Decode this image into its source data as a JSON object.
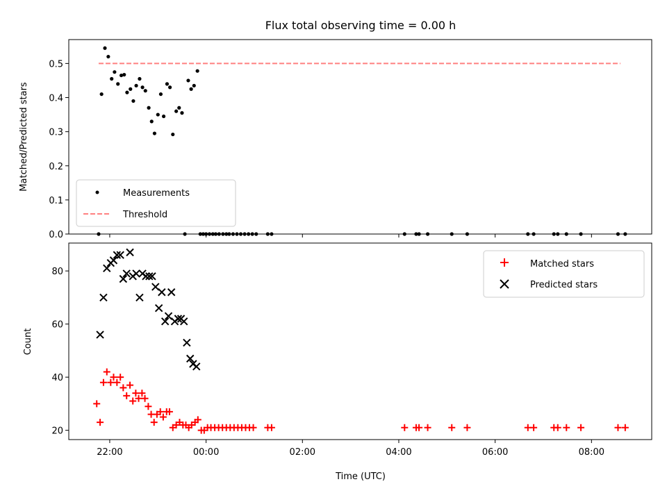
{
  "figure": {
    "title": "Flux total observing time = 0.00 h",
    "x_tick_labels": [
      "22:00",
      "00:00",
      "02:00",
      "04:00",
      "06:00",
      "08:00"
    ],
    "x_ticks_hours": [
      -2,
      0,
      2,
      4,
      6,
      8
    ],
    "xlabel": "Time (UTC)"
  },
  "chart_data": [
    {
      "type": "scatter",
      "ylabel": "Matched/Predicted stars",
      "xlim_hours": [
        -2.85,
        9.25
      ],
      "ylim": [
        0,
        0.57
      ],
      "y_ticks": [
        0.0,
        0.1,
        0.2,
        0.3,
        0.4,
        0.5
      ],
      "y_tick_labels": [
        "0.0",
        "0.1",
        "0.2",
        "0.3",
        "0.4",
        "0.5"
      ],
      "legend": {
        "placement": "lower-left",
        "entries": [
          "Measurements",
          "Threshold"
        ]
      },
      "series": [
        {
          "name": "Measurements",
          "marker": "dot",
          "color": "#000000",
          "x_hours": [
            -2.23,
            -2.17,
            -2.1,
            -2.03,
            -1.96,
            -1.9,
            -1.83,
            -1.76,
            -1.7,
            -1.64,
            -1.57,
            -1.51,
            -1.45,
            -1.38,
            -1.32,
            -1.26,
            -1.19,
            -1.13,
            -1.07,
            -1.0,
            -0.94,
            -0.88,
            -0.81,
            -0.75,
            -0.69,
            -0.62,
            -0.56,
            -0.5,
            -0.44,
            -0.37,
            -0.31,
            -0.25,
            -0.18,
            -0.12,
            -0.06,
            0.0,
            0.07,
            0.14,
            0.2,
            0.27,
            0.35,
            0.42,
            0.48,
            0.56,
            0.64,
            0.72,
            0.8,
            0.88,
            0.96,
            1.04,
            1.28,
            1.36,
            4.12,
            4.36,
            4.42,
            4.6,
            5.1,
            5.42,
            6.68,
            6.8,
            7.22,
            7.3,
            7.48,
            7.78,
            8.55,
            8.7
          ],
          "y_values": [
            0.0,
            0.41,
            0.545,
            0.52,
            0.455,
            0.475,
            0.44,
            0.465,
            0.467,
            0.415,
            0.425,
            0.39,
            0.435,
            0.455,
            0.43,
            0.42,
            0.37,
            0.33,
            0.295,
            0.35,
            0.41,
            0.345,
            0.44,
            0.43,
            0.292,
            0.36,
            0.37,
            0.355,
            0.0,
            0.45,
            0.425,
            0.435,
            0.478,
            0.0,
            0.0,
            0.0,
            0.0,
            0.0,
            0.0,
            0.0,
            0.0,
            0.0,
            0.0,
            0.0,
            0.0,
            0.0,
            0.0,
            0.0,
            0.0,
            0.0,
            0.0,
            0.0,
            0.0,
            0.0,
            0.0,
            0.0,
            0.0,
            0.0,
            0.0,
            0.0,
            0.0,
            0.0,
            0.0,
            0.0,
            0.0,
            0.0
          ]
        },
        {
          "name": "Threshold",
          "marker": "dashed-line",
          "color": "#ff8080",
          "x_hours": [
            -2.23,
            8.6
          ],
          "y_values": [
            0.5,
            0.5
          ]
        }
      ]
    },
    {
      "type": "scatter",
      "ylabel": "Count",
      "xlabel": "Time (UTC)",
      "xlim_hours": [
        -2.85,
        9.25
      ],
      "ylim": [
        16.5,
        90.5
      ],
      "y_ticks": [
        20,
        40,
        60,
        80
      ],
      "y_tick_labels": [
        "20",
        "40",
        "60",
        "80"
      ],
      "legend": {
        "placement": "upper-right",
        "entries": [
          "Matched stars",
          "Predicted stars"
        ]
      },
      "series": [
        {
          "name": "Matched stars",
          "marker": "plus",
          "color": "#ff0000",
          "x_hours": [
            -2.27,
            -2.2,
            -2.13,
            -2.06,
            -1.98,
            -1.92,
            -1.85,
            -1.78,
            -1.72,
            -1.65,
            -1.58,
            -1.52,
            -1.46,
            -1.4,
            -1.33,
            -1.27,
            -1.2,
            -1.14,
            -1.08,
            -1.02,
            -0.95,
            -0.89,
            -0.82,
            -0.76,
            -0.69,
            -0.62,
            -0.55,
            -0.48,
            -0.42,
            -0.36,
            -0.3,
            -0.23,
            -0.17,
            -0.1,
            -0.04,
            0.03,
            0.1,
            0.18,
            0.26,
            0.34,
            0.42,
            0.5,
            0.58,
            0.66,
            0.74,
            0.82,
            0.9,
            0.98,
            1.28,
            1.36,
            4.12,
            4.36,
            4.42,
            4.6,
            5.1,
            5.42,
            6.68,
            6.8,
            7.22,
            7.3,
            7.48,
            7.78,
            8.55,
            8.7
          ],
          "y_values": [
            30,
            23,
            38,
            42,
            38,
            40,
            38,
            40,
            36,
            33,
            37,
            31,
            34,
            32,
            34,
            32,
            29,
            26,
            23,
            26,
            27,
            25,
            27,
            27,
            21,
            22,
            23,
            22,
            22,
            21,
            22,
            23,
            24,
            20,
            20,
            21,
            21,
            21,
            21,
            21,
            21,
            21,
            21,
            21,
            21,
            21,
            21,
            21,
            21,
            21,
            21,
            21,
            21,
            21,
            21,
            21,
            21,
            21,
            21,
            21,
            21,
            21,
            21,
            21
          ]
        },
        {
          "name": "Predicted stars",
          "marker": "x",
          "color": "#000000",
          "x_hours": [
            -2.2,
            -2.13,
            -2.06,
            -1.98,
            -1.92,
            -1.85,
            -1.78,
            -1.72,
            -1.65,
            -1.58,
            -1.52,
            -1.45,
            -1.38,
            -1.32,
            -1.25,
            -1.18,
            -1.12,
            -1.05,
            -0.98,
            -0.92,
            -0.85,
            -0.78,
            -0.72,
            -0.65,
            -0.58,
            -0.52,
            -0.46,
            -0.4,
            -0.33,
            -0.27,
            -0.2,
            -0.14,
            -0.08
          ],
          "y_values": [
            56,
            70,
            81,
            83,
            84,
            86,
            86,
            77,
            79,
            87,
            78,
            79,
            70,
            79,
            78,
            78,
            78,
            74,
            66,
            72,
            61,
            63,
            72,
            61,
            62,
            62,
            61,
            53,
            47,
            45,
            44,
            null,
            null
          ]
        }
      ]
    }
  ]
}
